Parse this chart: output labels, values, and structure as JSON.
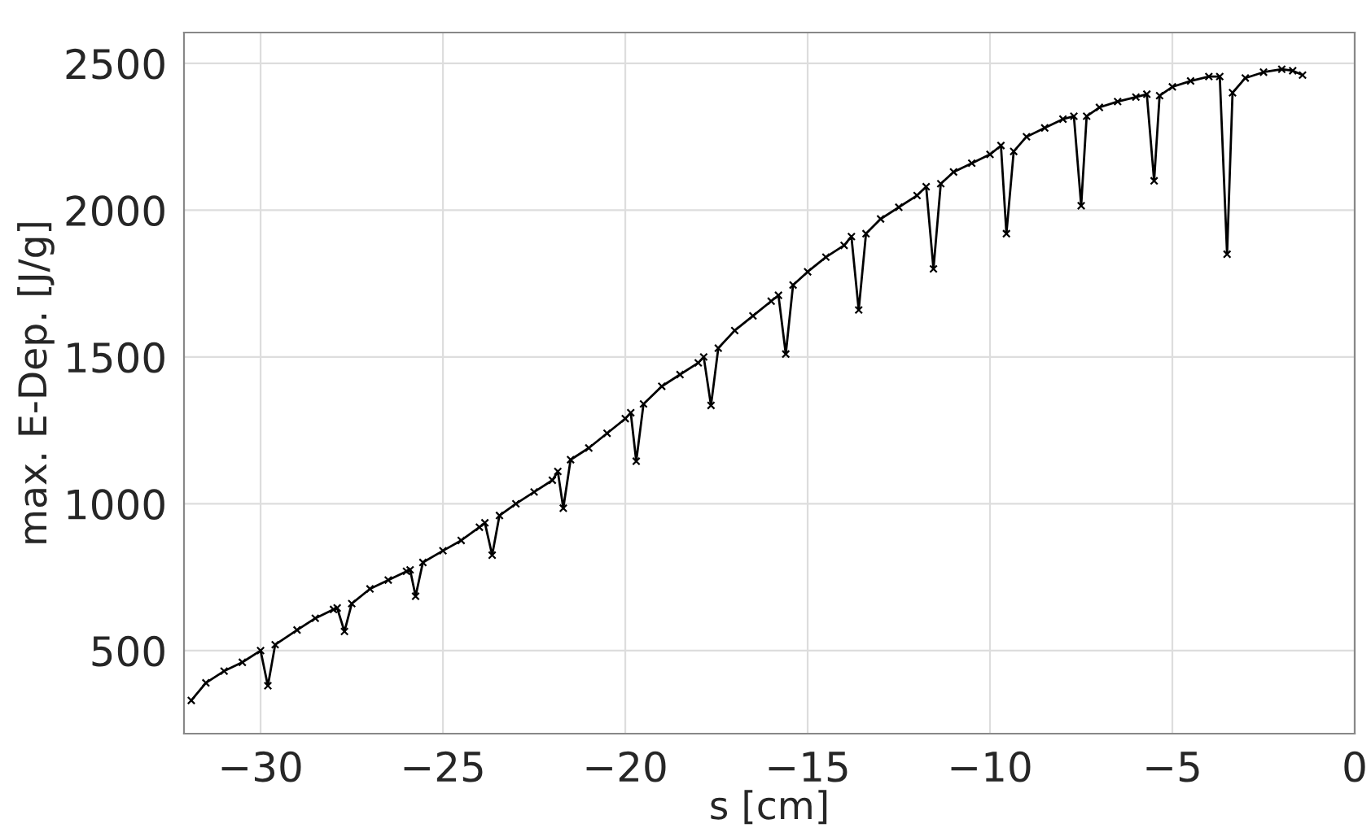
{
  "chart_data": {
    "type": "line",
    "xlabel": "s [cm]",
    "ylabel": "max. E-Dep. [J/g]",
    "series": [
      {
        "color": "#000000",
        "x": [
          -31.9,
          -31.5,
          -31,
          -30.5,
          -30,
          -29.8,
          -29.6,
          -29,
          -28.5,
          -28,
          -27.9,
          -27.7,
          -27.5,
          -27,
          -26.5,
          -26,
          -25.9,
          -25.75,
          -25.55,
          -25,
          -24.5,
          -24,
          -23.85,
          -23.65,
          -23.45,
          -23,
          -22.5,
          -22,
          -21.85,
          -21.7,
          -21.5,
          -21,
          -20.5,
          -20,
          -19.85,
          -19.7,
          -19.5,
          -19,
          -18.5,
          -18,
          -17.85,
          -17.65,
          -17.45,
          -17,
          -16.5,
          -16,
          -15.8,
          -15.6,
          -15.4,
          -15,
          -14.5,
          -14,
          -13.8,
          -13.6,
          -13.4,
          -13,
          -12.5,
          -12,
          -11.75,
          -11.55,
          -11.35,
          -11,
          -10.5,
          -10,
          -9.7,
          -9.55,
          -9.35,
          -9,
          -8.5,
          -8,
          -7.7,
          -7.5,
          -7.35,
          -7,
          -6.5,
          -6,
          -5.7,
          -5.5,
          -5.35,
          -5,
          -4.5,
          -4,
          -3.7,
          -3.5,
          -3.35,
          -3,
          -2.5,
          -2,
          -1.7,
          -1.43
        ],
        "values": [
          330,
          390,
          430,
          460,
          500,
          380,
          520,
          570,
          610,
          640,
          645,
          565,
          660,
          710,
          740,
          770,
          775,
          685,
          800,
          840,
          875,
          920,
          935,
          825,
          960,
          1000,
          1040,
          1080,
          1110,
          985,
          1150,
          1190,
          1240,
          1290,
          1310,
          1145,
          1340,
          1400,
          1440,
          1480,
          1500,
          1335,
          1530,
          1590,
          1640,
          1690,
          1710,
          1510,
          1745,
          1790,
          1840,
          1880,
          1910,
          1660,
          1920,
          1970,
          2010,
          2050,
          2080,
          1800,
          2090,
          2130,
          2160,
          2190,
          2220,
          1920,
          2200,
          2250,
          2280,
          2310,
          2320,
          2015,
          2320,
          2350,
          2370,
          2385,
          2395,
          2100,
          2390,
          2420,
          2440,
          2455,
          2455,
          1850,
          2400,
          2450,
          2470,
          2480,
          2475,
          2460
        ]
      }
    ],
    "marker": "cross",
    "line_style": "solid",
    "grid": true,
    "xlim": [
      -32.1,
      0
    ],
    "xticks": [
      -30,
      -25,
      -20,
      -15,
      -10,
      -5,
      0
    ],
    "ylim": [
      217,
      2605
    ],
    "yticks": [
      500,
      1000,
      1500,
      2000,
      2500
    ]
  }
}
